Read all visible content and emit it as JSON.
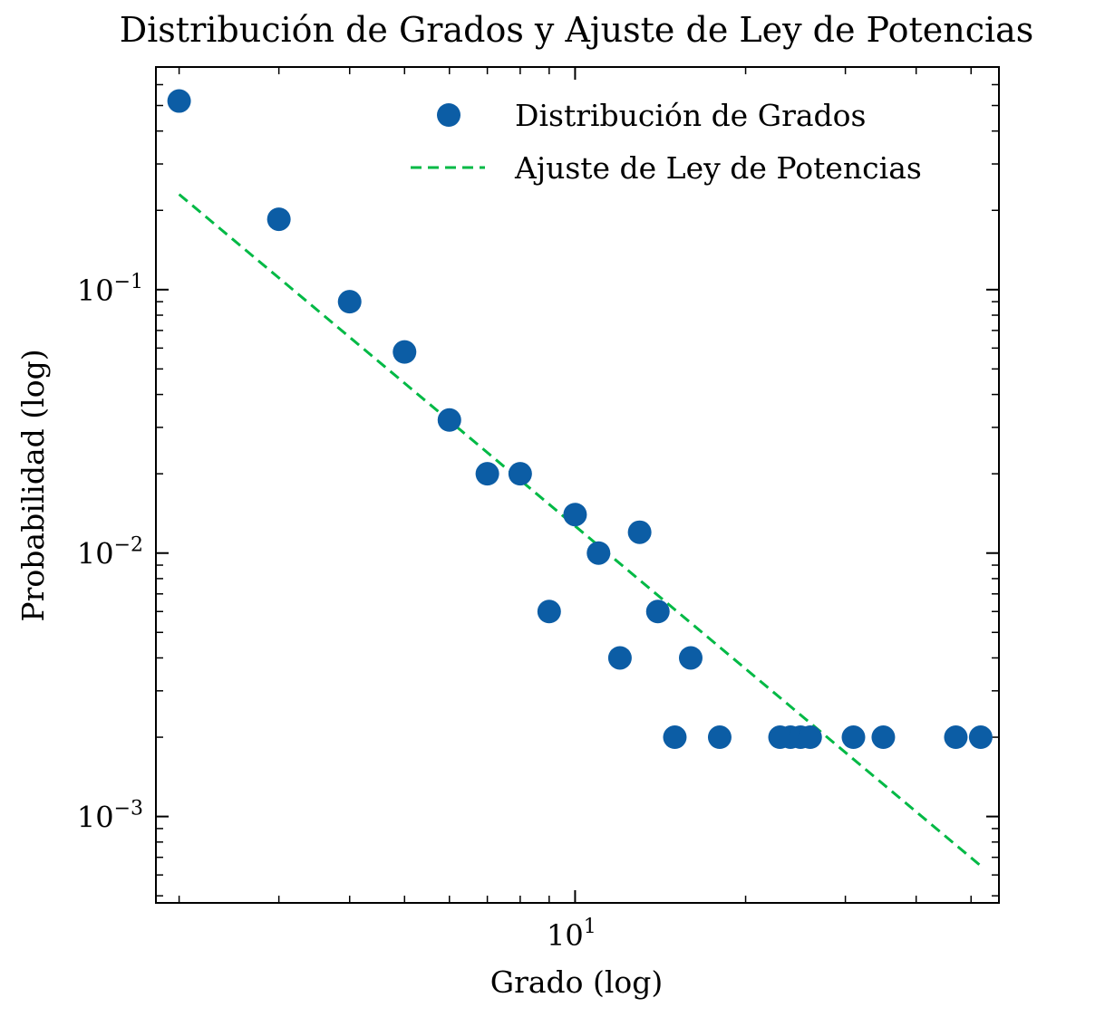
{
  "chart_data": {
    "type": "scatter",
    "title": "Distribución de Grados y Ajuste de Ley de Potencias",
    "xlabel": "Grado (log)",
    "ylabel": "Probabilidad (log)",
    "xscale": "log",
    "yscale": "log",
    "xlim": [
      1.82,
      56
    ],
    "ylim": [
      0.00047,
      0.7
    ],
    "grid": false,
    "legend_position": "top-right",
    "x_ticks": [
      {
        "base": "10",
        "exp": "1"
      }
    ],
    "y_ticks": [
      {
        "base": "10",
        "exp": "−3"
      },
      {
        "base": "10",
        "exp": "−2"
      },
      {
        "base": "10",
        "exp": "−1"
      }
    ],
    "series": [
      {
        "name": "Distribución de Grados",
        "kind": "scatter",
        "color": "#0C5DA5",
        "points": [
          {
            "x": 2,
            "y": 0.52
          },
          {
            "x": 3,
            "y": 0.185
          },
          {
            "x": 4,
            "y": 0.09
          },
          {
            "x": 5,
            "y": 0.058
          },
          {
            "x": 6,
            "y": 0.032
          },
          {
            "x": 7,
            "y": 0.02
          },
          {
            "x": 8,
            "y": 0.02
          },
          {
            "x": 9,
            "y": 0.006
          },
          {
            "x": 10,
            "y": 0.014
          },
          {
            "x": 11,
            "y": 0.01
          },
          {
            "x": 12,
            "y": 0.004
          },
          {
            "x": 13,
            "y": 0.012
          },
          {
            "x": 14,
            "y": 0.006
          },
          {
            "x": 15,
            "y": 0.002
          },
          {
            "x": 16,
            "y": 0.004
          },
          {
            "x": 18,
            "y": 0.002
          },
          {
            "x": 23,
            "y": 0.002
          },
          {
            "x": 24,
            "y": 0.002
          },
          {
            "x": 25,
            "y": 0.002
          },
          {
            "x": 26,
            "y": 0.002
          },
          {
            "x": 31,
            "y": 0.002
          },
          {
            "x": 35,
            "y": 0.002
          },
          {
            "x": 47,
            "y": 0.002
          },
          {
            "x": 52,
            "y": 0.002
          }
        ]
      },
      {
        "name": "Ajuste de Ley de Potencias",
        "kind": "line",
        "style": "dashed",
        "color": "#00B945",
        "points": [
          {
            "x": 2,
            "y": 0.23
          },
          {
            "x": 52,
            "y": 0.00065
          }
        ]
      }
    ]
  }
}
